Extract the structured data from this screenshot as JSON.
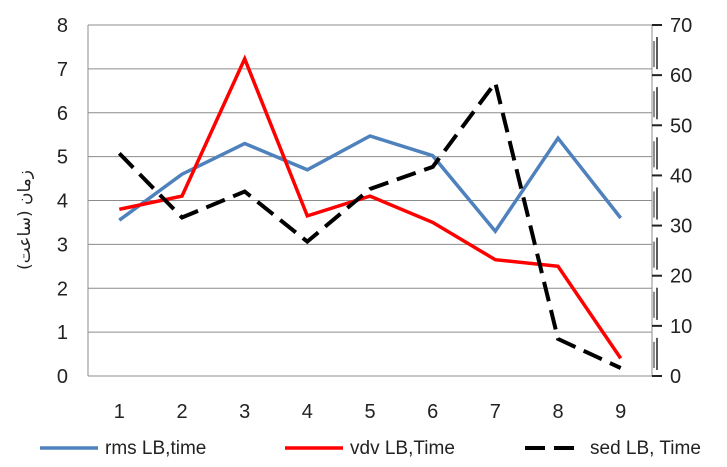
{
  "chart_data": {
    "type": "line",
    "categories": [
      "1",
      "2",
      "3",
      "4",
      "5",
      "6",
      "7",
      "8",
      "9"
    ],
    "ylabel": "زمان (ساعت)",
    "ylim": [
      0,
      8
    ],
    "y_ticks": [
      "0",
      "1",
      "2",
      "3",
      "4",
      "5",
      "6",
      "7",
      "8"
    ],
    "y2lim": [
      0,
      70
    ],
    "y2_ticks": [
      "0",
      "10",
      "20",
      "30",
      "40",
      "50",
      "60",
      "70"
    ],
    "grid": true,
    "legend_position": "bottom",
    "series": [
      {
        "name": "rms LB,time",
        "axis": "left",
        "color": "#4F81BD",
        "dash": "solid",
        "values": [
          3.55,
          4.6,
          5.3,
          4.7,
          5.47,
          5.02,
          3.3,
          5.42,
          3.6
        ]
      },
      {
        "name": "vdv LB,Time",
        "axis": "left",
        "color": "#FF0000",
        "dash": "solid",
        "values": [
          3.8,
          4.1,
          7.23,
          3.65,
          4.1,
          3.5,
          2.65,
          2.5,
          0.4
        ]
      },
      {
        "name": "sed LB, Time",
        "axis": "right",
        "color": "#000000",
        "dash": "dashed",
        "values": [
          44.4,
          31.6,
          36.8,
          26.8,
          37.3,
          41.7,
          58.5,
          7.4,
          1.6
        ]
      }
    ]
  }
}
